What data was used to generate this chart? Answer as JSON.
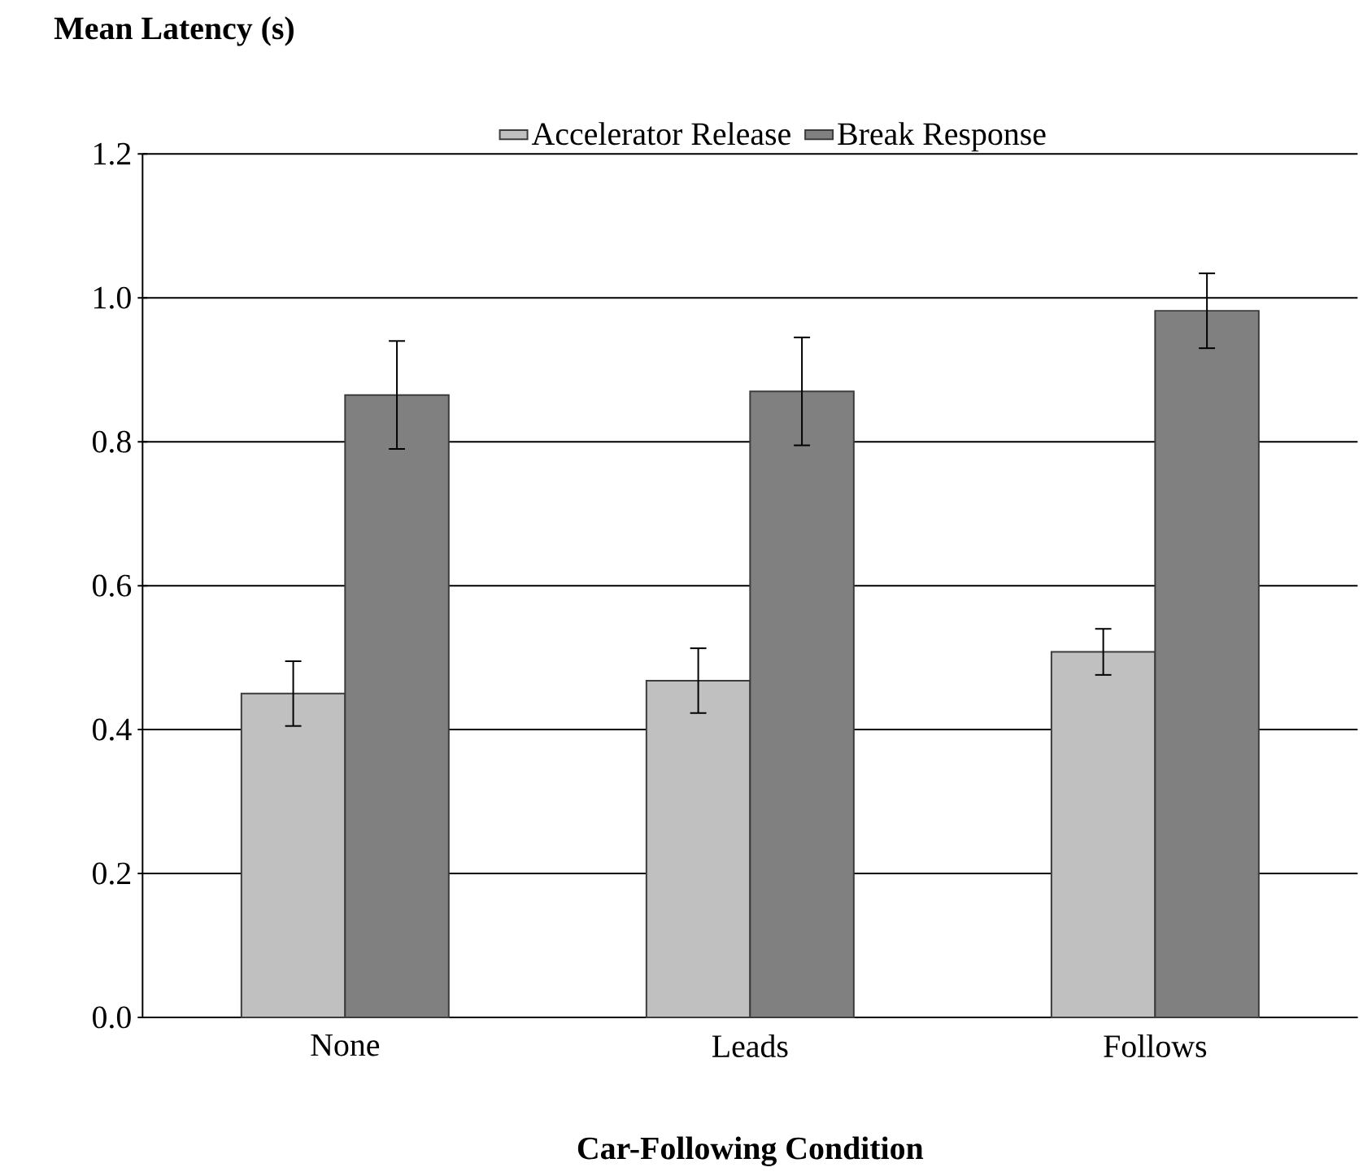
{
  "chart_data": {
    "type": "bar",
    "title": "Mean Latency (s)",
    "xlabel": "Car-Following Condition",
    "categories": [
      "None",
      "Leads",
      "Follows"
    ],
    "series": [
      {
        "name": "Accelerator Release",
        "color": "#c0c0c0",
        "values": [
          0.45,
          0.468,
          0.508
        ],
        "errors": [
          0.045,
          0.045,
          0.032
        ]
      },
      {
        "name": "Break Response",
        "color": "#808080",
        "values": [
          0.865,
          0.87,
          0.982
        ],
        "errors": [
          0.075,
          0.075,
          0.052
        ]
      }
    ],
    "ylim": [
      0,
      1.2
    ],
    "yticks": [
      {
        "value": 0,
        "label": "0.0"
      },
      0.2,
      0.4,
      0.6,
      0.8,
      {
        "value": 1,
        "label": "1.0"
      },
      1.2
    ],
    "grid": "y",
    "legend": "top"
  }
}
